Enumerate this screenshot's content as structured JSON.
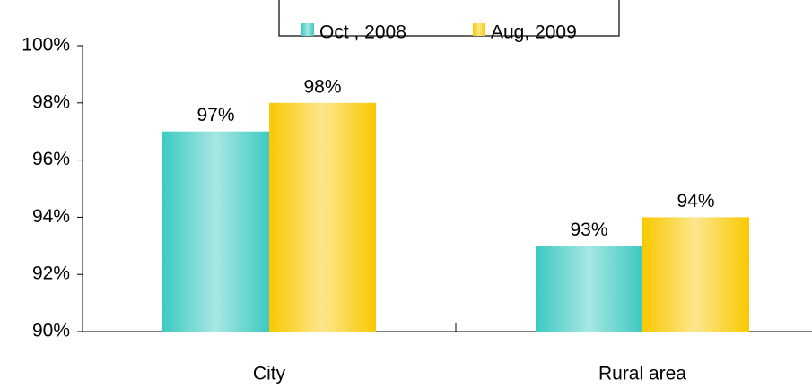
{
  "chart_data": {
    "type": "bar",
    "categories": [
      "City",
      "Rural area"
    ],
    "series": [
      {
        "name": "Oct , 2008",
        "color": "#3cc9c1",
        "values": [
          97,
          93
        ],
        "value_labels": [
          "97%",
          "93%"
        ]
      },
      {
        "name": "Aug, 2009",
        "color": "#f9c800",
        "values": [
          98,
          94
        ],
        "value_labels": [
          "98%",
          "94%"
        ]
      }
    ],
    "ylim": [
      90,
      100
    ],
    "yticks": [
      {
        "value": 90,
        "label": "90%"
      },
      {
        "value": 92,
        "label": "92%"
      },
      {
        "value": 94,
        "label": "94%"
      },
      {
        "value": 96,
        "label": "96%"
      },
      {
        "value": 98,
        "label": "98%"
      },
      {
        "value": 100,
        "label": "100%"
      }
    ],
    "legend": "top"
  }
}
